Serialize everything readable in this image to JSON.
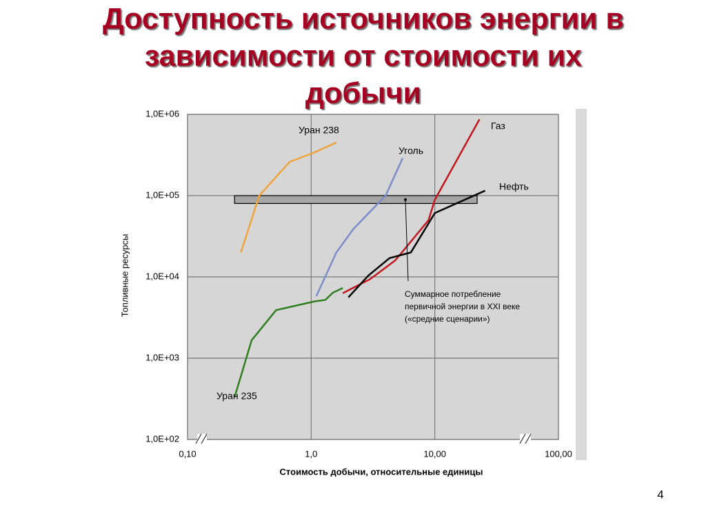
{
  "title": [
    "Доступность источников энергии в",
    "зависимости от стоимости их",
    "добычи"
  ],
  "page_number": "4",
  "chart_data": {
    "type": "line",
    "x_scale": "log",
    "y_scale": "log",
    "grid": true,
    "xlabel": "Стоимость добычи, относительные единицы",
    "ylabel": "Топливные ресурсы",
    "xlim": [
      0.1,
      100
    ],
    "ylim": [
      100,
      1000000
    ],
    "xticks": [
      {
        "value": 0.1,
        "label": "0,10"
      },
      {
        "value": 1,
        "label": "1,0"
      },
      {
        "value": 10,
        "label": "10,00"
      },
      {
        "value": 100,
        "label": "100,00"
      }
    ],
    "yticks": [
      {
        "value": 100,
        "label": "1,0E+02"
      },
      {
        "value": 1000,
        "label": "1,0E+03"
      },
      {
        "value": 10000,
        "label": "1,0E+04"
      },
      {
        "value": 100000,
        "label": "1,0E+05"
      },
      {
        "value": 1000000,
        "label": "1,0E+06"
      }
    ],
    "series": [
      {
        "name": "Уран 238",
        "color": "#f0a33a",
        "x": [
          0.27,
          0.38,
          0.67,
          1.04,
          1.6
        ],
        "values": [
          20000,
          100000,
          260000,
          335000,
          450000
        ]
      },
      {
        "name": "Уголь",
        "color": "#7b8cc8",
        "x": [
          1.1,
          1.6,
          2.2,
          4.0,
          5.5
        ],
        "values": [
          5800,
          20000,
          39000,
          100000,
          290000
        ]
      },
      {
        "name": "Газ",
        "color": "#c0161c",
        "x": [
          1.8,
          3.0,
          4.8,
          8.9,
          10,
          23
        ],
        "values": [
          6300,
          9400,
          16000,
          50000,
          89000,
          870000
        ]
      },
      {
        "name": "Нефть",
        "color": "#000000",
        "x": [
          2.0,
          2.9,
          4.3,
          6.4,
          10,
          25.5
        ],
        "values": [
          5600,
          10400,
          17000,
          20000,
          61000,
          115000
        ]
      },
      {
        "name": "Уран 235",
        "color": "#2e7d1e",
        "x": [
          0.24,
          0.33,
          0.52,
          1.07,
          1.3,
          1.5,
          1.8
        ],
        "values": [
          330,
          1660,
          3900,
          5000,
          5200,
          6400,
          7300
        ]
      }
    ],
    "band": {
      "x": [
        0.24,
        22
      ],
      "y": [
        80000,
        100000
      ],
      "color": "#a6a6a6"
    },
    "annotation": [
      "Суммарное потребление",
      "первичной энергии в XXI веке",
      "(«средние сценарии»)"
    ]
  }
}
